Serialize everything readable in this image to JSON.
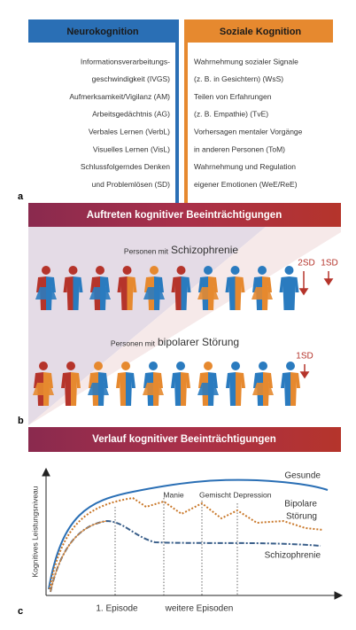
{
  "panel_a": {
    "label": "a",
    "neuro": {
      "title": "Neurokognition",
      "items": [
        "Informationsverarbeitungs-",
        "geschwindigkeit (IVGS)",
        "Aufmerksamkeit/Vigilanz (AM)",
        "Arbeitsgedächtnis (AG)",
        "Verbales Lernen (VerbL)",
        "Visuelles Lernen (VisL)",
        "Schlussfolgerndes Denken",
        "und Problemlösen (SD)"
      ]
    },
    "social": {
      "title": "Soziale Kognition",
      "items": [
        "Wahrnehmung sozialer Signale",
        "(z. B. in Gesichtern) (WsS)",
        "Teilen von Erfahrungen",
        "(z. B. Empathie) (TvE)",
        "Vorhersagen mentaler Vorgänge",
        "in anderen Personen (ToM)",
        "Wahrnehmung und Regulation",
        "eigener Emotionen (WeE/ReE)"
      ]
    }
  },
  "panel_b": {
    "label": "b",
    "banner": "Auftreten kognitiver Beeinträchtigungen",
    "schizo": {
      "prefix": "Personen mit",
      "name": "Schizophrenie",
      "sd": [
        "2SD",
        "1SD"
      ]
    },
    "bipolar": {
      "prefix": "Personen mit",
      "name": "bipolarer Störung",
      "sd": [
        "1SD"
      ]
    }
  },
  "panel_c": {
    "label": "c",
    "banner": "Verlauf kognitiver Beeinträchtigungen",
    "y_label": "Kognitives Leistungsniveau",
    "healthy": "Gesunde",
    "bipolar": [
      "Bipolare",
      "Störung"
    ],
    "schizo": "Schizophrenie",
    "phases": [
      "Manie",
      "Gemischt",
      "Depression"
    ],
    "x_labels": [
      "1. Episode",
      "weitere Episoden"
    ]
  }
}
